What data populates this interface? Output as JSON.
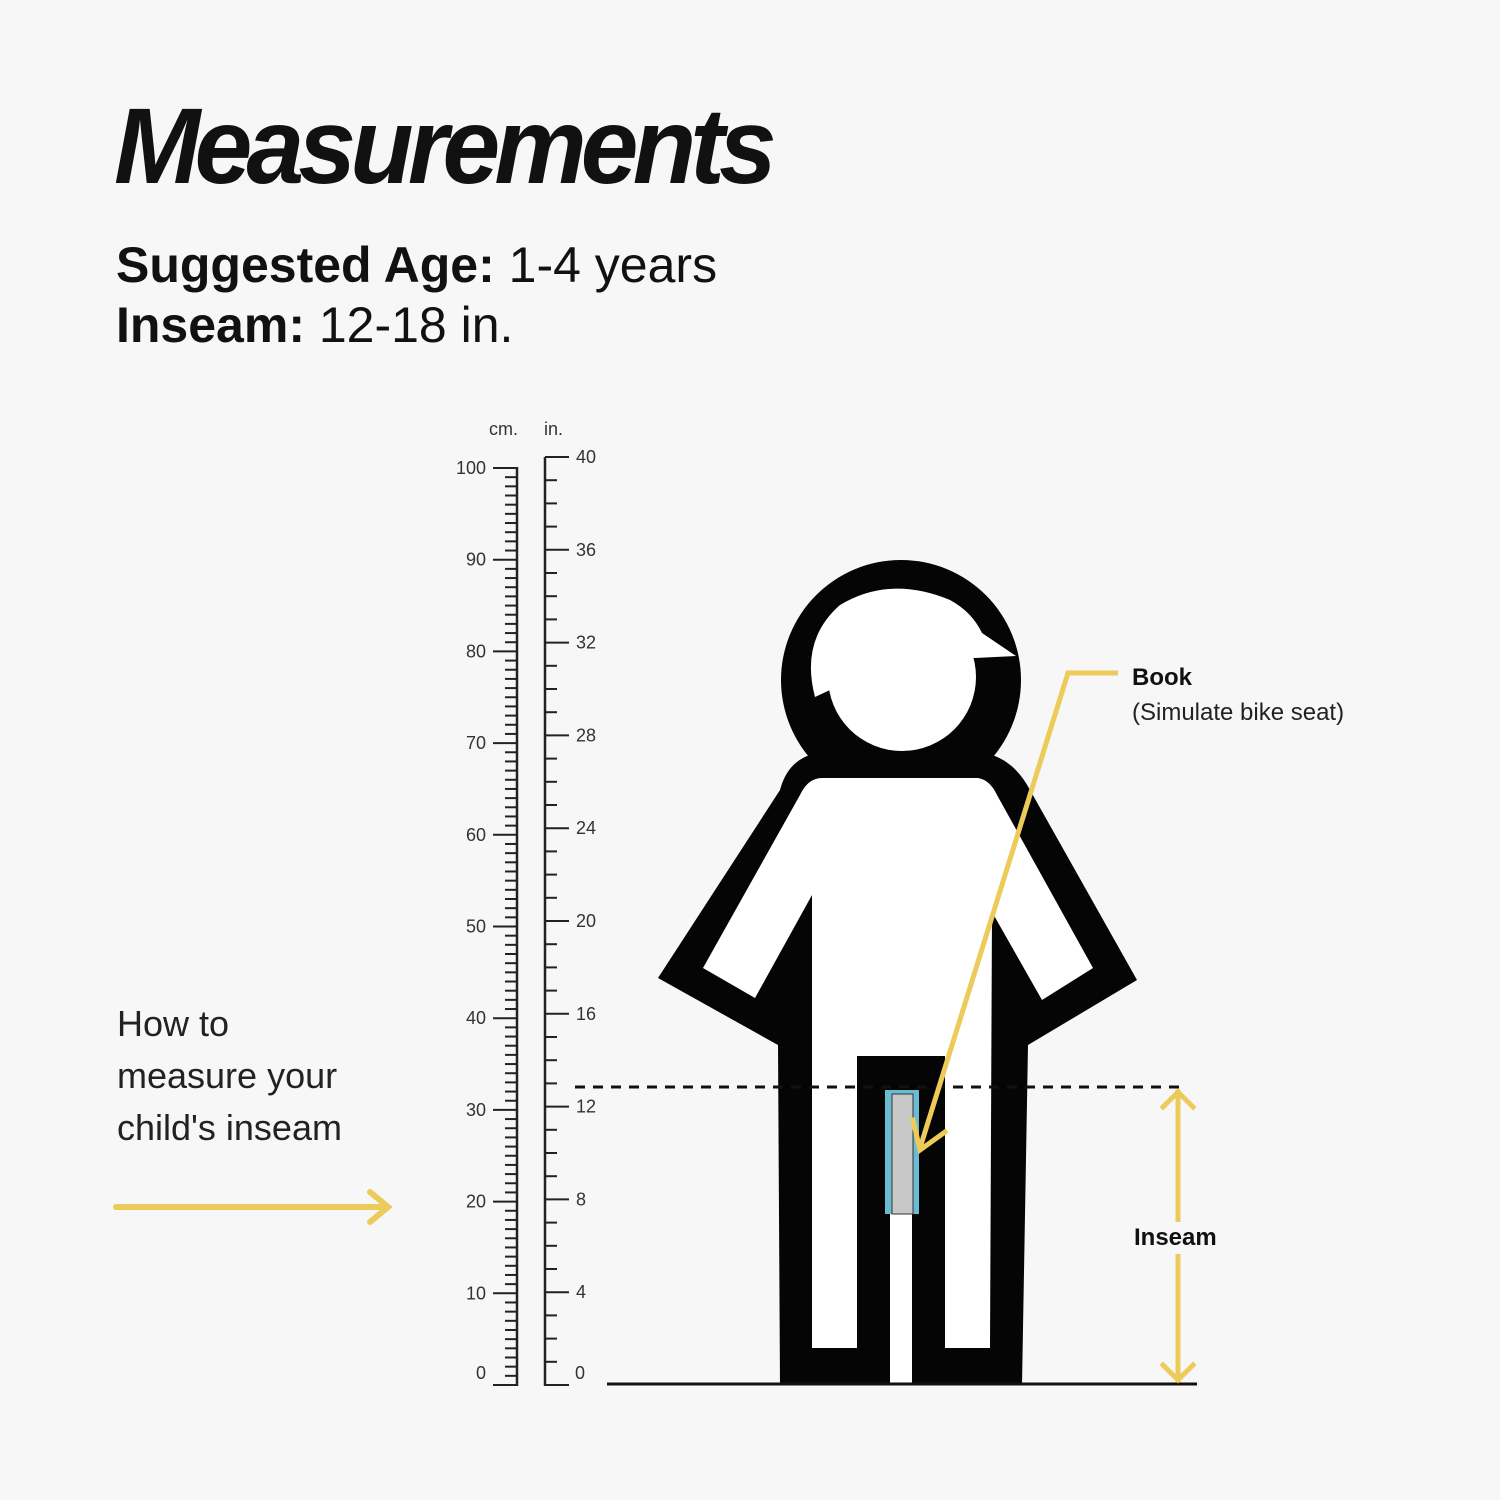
{
  "title": "Measurements",
  "specs": {
    "age_label": "Suggested Age:",
    "age_value": " 1-4 years",
    "inseam_label": "Inseam:",
    "inseam_value": " 12-18 in."
  },
  "howto": [
    "How to",
    "measure your",
    "child's inseam"
  ],
  "ruler": {
    "cm_unit": "cm.",
    "in_unit": "in.",
    "cm_labels": [
      "0",
      "10",
      "20",
      "30",
      "40",
      "50",
      "60",
      "70",
      "80",
      "90",
      "100"
    ],
    "in_labels": [
      "0",
      "4",
      "8",
      "12",
      "16",
      "20",
      "24",
      "28",
      "32",
      "36",
      "40"
    ],
    "cm_max": 100,
    "in_max": 40
  },
  "book": {
    "label": "Book",
    "sublabel": "(Simulate bike seat)"
  },
  "inseam_marker": "Inseam",
  "colors": {
    "accent_yellow": "#EDCB5A",
    "book_blue": "#6BBBD3",
    "book_gray": "#C8C8C8",
    "figure_black": "#050505",
    "background": "#F7F7F7"
  }
}
